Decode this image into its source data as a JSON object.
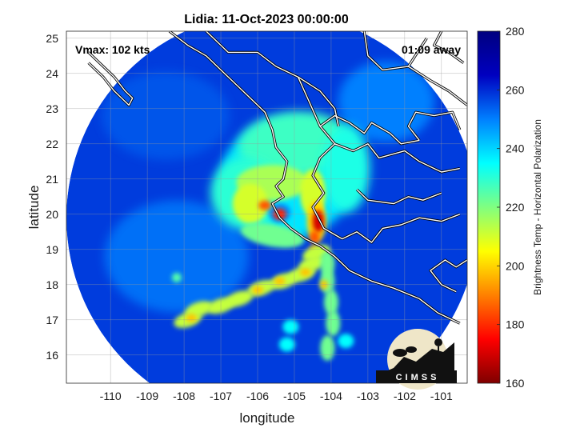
{
  "title": "Lidia: 11-Oct-2023 00:00:00",
  "annotations": {
    "vmax": "Vmax: 102 kts",
    "time_away": "01:09 away"
  },
  "axes": {
    "xlabel": "longitude",
    "ylabel": "latitude",
    "xlim": [
      -111.2,
      -100.3
    ],
    "ylim": [
      15.2,
      25.2
    ],
    "xticks": [
      -110,
      -109,
      -108,
      -107,
      -106,
      -105,
      -104,
      -103,
      -102,
      -101
    ],
    "yticks": [
      16,
      17,
      18,
      19,
      20,
      21,
      22,
      23,
      24,
      25
    ],
    "grid": true
  },
  "colorbar": {
    "label": "Brightness Temp - Horizontal Polarization",
    "range": [
      160,
      280
    ],
    "ticks": [
      160,
      180,
      200,
      220,
      240,
      260,
      280
    ],
    "colors": [
      "#7f0000",
      "#ff0000",
      "#ff8000",
      "#ffff00",
      "#80ff80",
      "#00ffff",
      "#0080ff",
      "#0000c0",
      "#00007f"
    ]
  },
  "swath": {
    "center_lon": -105.6,
    "center_lat": 19.9,
    "radius_deg": 5.6
  },
  "storm": {
    "eye_lon": -105.5,
    "eye_lat": 20.1
  },
  "logo": {
    "text": "CIMSS"
  },
  "chart_data": {
    "type": "heatmap",
    "title": "Lidia: 11-Oct-2023 00:00:00",
    "xlabel": "longitude",
    "ylabel": "latitude",
    "xlim": [
      -111.2,
      -100.3
    ],
    "ylim": [
      15.2,
      25.2
    ],
    "color_range": [
      160,
      280
    ],
    "colorbar_label": "Brightness Temp - Horizontal Polarization",
    "features": [
      {
        "name": "cold core west of eye",
        "lon": -105.9,
        "lat": 20.3,
        "value": 165
      },
      {
        "name": "cold core east",
        "lon": -104.4,
        "lat": 19.7,
        "value": 170
      },
      {
        "name": "inner ring",
        "lon": -105.3,
        "lat": 20.8,
        "value": 215
      },
      {
        "name": "northern shield",
        "lon": -105.0,
        "lat": 21.8,
        "value": 225
      },
      {
        "name": "outer rainband arc",
        "lon": -106.2,
        "lat": 17.7,
        "value": 200
      },
      {
        "name": "southern band",
        "lon": -104.0,
        "lat": 17.2,
        "value": 215
      },
      {
        "name": "background",
        "lon": -107.0,
        "lat": 23.0,
        "value": 258
      }
    ]
  }
}
